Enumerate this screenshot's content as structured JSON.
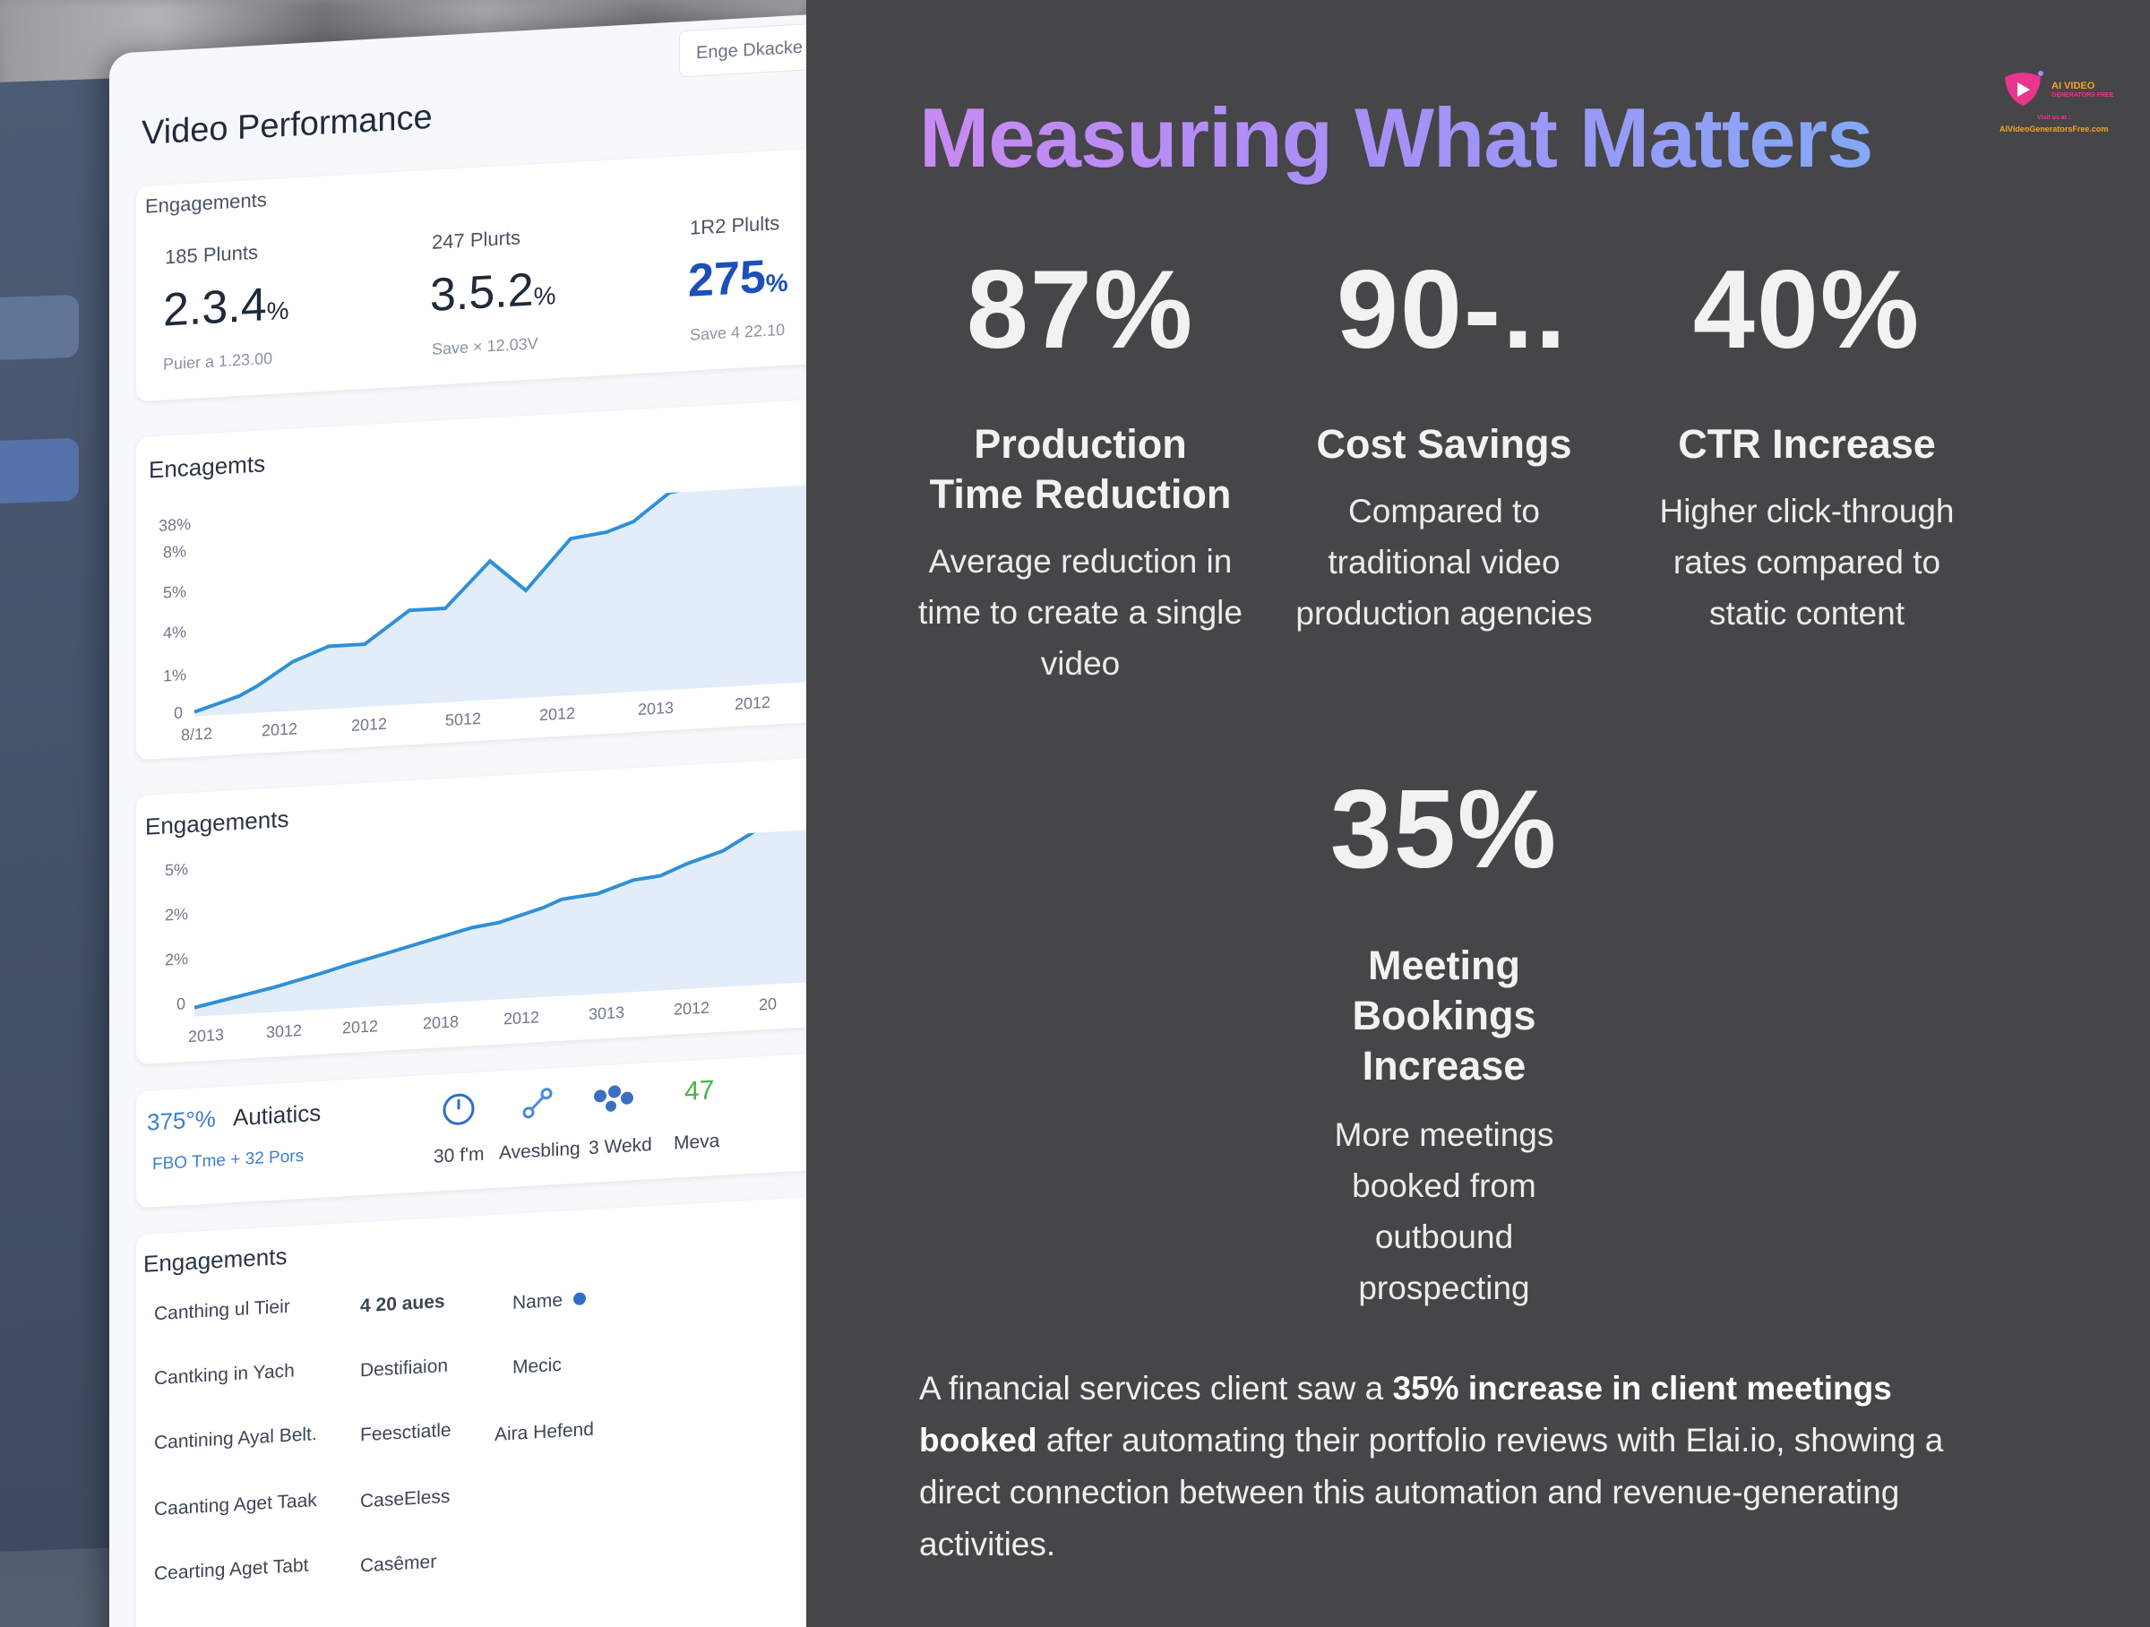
{
  "title": "Measuring What Matters",
  "logo": {
    "brand": "AI VIDEO",
    "sub": "GENERATORS FREE",
    "visit": "Visit us at :",
    "url": "AIVideoGeneratorsFree.com"
  },
  "stats": [
    {
      "value": "87%",
      "label": "Production Time Reduction",
      "description": "Average reduction in time to create a single video"
    },
    {
      "value": "90-..",
      "label": "Cost Savings",
      "description": "Compared to traditional video production agencies"
    },
    {
      "value": "40%",
      "label": "CTR Increase",
      "description": "Higher click-through rates compared to static content"
    },
    {
      "value": "35%",
      "label": "Meeting Bookings Increase",
      "description": "More meetings booked from outbound prospecting"
    }
  ],
  "story": {
    "prefix": "A financial services client saw a ",
    "highlight": "35% increase in client meetings booked",
    "suffix": " after automating their portfolio reviews with Elai.io, showing a direct connection between this automation and revenue-generating activities."
  },
  "dashboard": {
    "title": "Video Performance",
    "chip": "Enge Dkacke",
    "kpi_section": "Engagements",
    "kpis": [
      {
        "label": "185 Plunts",
        "value": "2.3.4",
        "unit": "%",
        "note": "Puier a 1.23.00"
      },
      {
        "label": "247 Plurts",
        "value": "3.5.2",
        "unit": "%",
        "note": "Save × 12.03V"
      },
      {
        "label": "1R2 Plults",
        "value": "275",
        "unit": "%",
        "note": "Save 4 22.10"
      }
    ],
    "chart1": {
      "title": "Encagemts",
      "yticks": [
        "38%",
        "8%",
        "5%",
        "4%",
        "1%",
        "0"
      ],
      "xticks": [
        "8/12",
        "2012",
        "2012",
        "5012",
        "2012",
        "2013",
        "2012"
      ]
    },
    "chart2": {
      "title": "Engagements",
      "yticks": [
        "5%",
        "2%",
        "2%",
        "0"
      ],
      "xticks": [
        "2013",
        "3012",
        "2012",
        "2018",
        "2012",
        "3013",
        "2012",
        "20"
      ]
    },
    "summary": {
      "pct": "375°%",
      "name": "Autiatics",
      "note": "FBO Tme + 32 Pors",
      "icons": [
        {
          "icon": "clock-icon",
          "label": "30 f'm"
        },
        {
          "icon": "link-icon",
          "label": "Avesbling"
        },
        {
          "icon": "network-icon",
          "label": "3 Wekd"
        },
        {
          "icon": "",
          "label": "Meva",
          "value": "47"
        }
      ]
    },
    "table": {
      "title": "Engagements",
      "col_a": [
        "Canthing ul Tieir",
        "Cantking in Yach",
        "Cantining Ayal Belt.",
        "Caanting Aget Taak",
        "Cearting Aget Tabt"
      ],
      "col_b": [
        "4 20 aues",
        "Destifiaion",
        "Feesctiatle",
        "CaseEless",
        "Casêmer"
      ],
      "col_c": [
        "Name",
        "Mecic",
        "Aira Hefend"
      ]
    }
  },
  "colors": {
    "background": "#464547",
    "title_start": "#c98af3",
    "title_end": "#84a8f7",
    "accent_blue": "#1d4fb8",
    "line": "#2f8fd8"
  }
}
